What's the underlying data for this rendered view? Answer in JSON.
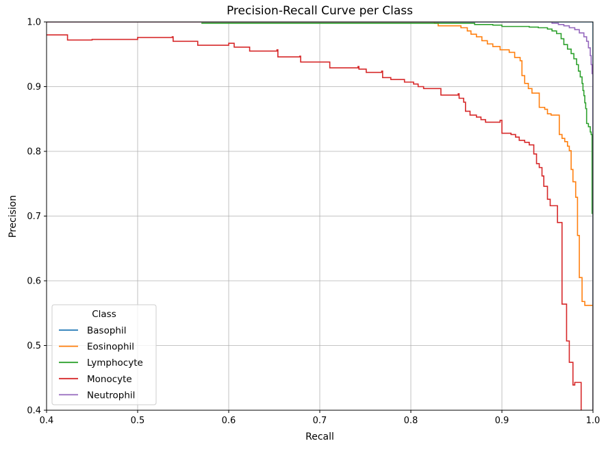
{
  "chart_data": {
    "type": "line",
    "title": "Precision-Recall Curve per Class",
    "xlabel": "Recall",
    "ylabel": "Precision",
    "xlim": [
      0.4,
      1.0
    ],
    "ylim": [
      0.4,
      1.0
    ],
    "xticks": [
      "0.4",
      "0.5",
      "0.6",
      "0.7",
      "0.8",
      "0.9",
      "1.0"
    ],
    "yticks": [
      "0.4",
      "0.5",
      "0.6",
      "0.7",
      "0.8",
      "0.9",
      "1.0"
    ],
    "grid": true,
    "legend": {
      "title": "Class",
      "placement": "lower-left"
    },
    "step": true,
    "series": [
      {
        "name": "Basophil",
        "color": "#1f77b4",
        "points": [
          [
            0.0,
            1.0
          ],
          [
            0.998,
            1.0
          ],
          [
            1.0,
            1.0
          ],
          [
            1.0,
            0.4
          ]
        ]
      },
      {
        "name": "Eosinophil",
        "color": "#ff7f0e",
        "points": [
          [
            0.0,
            1.0
          ],
          [
            0.815,
            1.0
          ],
          [
            0.826,
            0.998
          ],
          [
            0.83,
            0.994
          ],
          [
            0.85,
            0.994
          ],
          [
            0.855,
            0.991
          ],
          [
            0.862,
            0.986
          ],
          [
            0.866,
            0.981
          ],
          [
            0.872,
            0.977
          ],
          [
            0.878,
            0.971
          ],
          [
            0.884,
            0.966
          ],
          [
            0.89,
            0.962
          ],
          [
            0.898,
            0.957
          ],
          [
            0.905,
            0.957
          ],
          [
            0.908,
            0.953
          ],
          [
            0.914,
            0.945
          ],
          [
            0.92,
            0.94
          ],
          [
            0.922,
            0.917
          ],
          [
            0.925,
            0.905
          ],
          [
            0.929,
            0.897
          ],
          [
            0.933,
            0.89
          ],
          [
            0.94,
            0.89
          ],
          [
            0.941,
            0.868
          ],
          [
            0.947,
            0.865
          ],
          [
            0.95,
            0.858
          ],
          [
            0.954,
            0.856
          ],
          [
            0.962,
            0.856
          ],
          [
            0.963,
            0.826
          ],
          [
            0.966,
            0.82
          ],
          [
            0.969,
            0.815
          ],
          [
            0.972,
            0.808
          ],
          [
            0.974,
            0.801
          ],
          [
            0.976,
            0.772
          ],
          [
            0.978,
            0.753
          ],
          [
            0.981,
            0.729
          ],
          [
            0.983,
            0.67
          ],
          [
            0.985,
            0.605
          ],
          [
            0.988,
            0.568
          ],
          [
            0.991,
            0.562
          ],
          [
            1.0,
            0.562
          ],
          [
            1.0,
            0.4
          ]
        ]
      },
      {
        "name": "Lymphocyte",
        "color": "#2ca02c",
        "points": [
          [
            0.57,
            0.998
          ],
          [
            0.84,
            0.998
          ],
          [
            0.87,
            0.996
          ],
          [
            0.89,
            0.995
          ],
          [
            0.9,
            0.993
          ],
          [
            0.925,
            0.993
          ],
          [
            0.93,
            0.992
          ],
          [
            0.94,
            0.991
          ],
          [
            0.95,
            0.989
          ],
          [
            0.955,
            0.986
          ],
          [
            0.96,
            0.982
          ],
          [
            0.965,
            0.974
          ],
          [
            0.968,
            0.965
          ],
          [
            0.972,
            0.958
          ],
          [
            0.976,
            0.951
          ],
          [
            0.979,
            0.943
          ],
          [
            0.982,
            0.934
          ],
          [
            0.984,
            0.924
          ],
          [
            0.986,
            0.915
          ],
          [
            0.988,
            0.905
          ],
          [
            0.989,
            0.894
          ],
          [
            0.99,
            0.886
          ],
          [
            0.991,
            0.875
          ],
          [
            0.992,
            0.866
          ],
          [
            0.993,
            0.843
          ],
          [
            0.995,
            0.838
          ],
          [
            0.997,
            0.83
          ],
          [
            0.998,
            0.826
          ],
          [
            0.999,
            0.704
          ],
          [
            1.0,
            0.7
          ],
          [
            1.0,
            0.4
          ]
        ]
      },
      {
        "name": "Monocyte",
        "color": "#d62728",
        "points": [
          [
            0.4,
            0.98
          ],
          [
            0.422,
            0.98
          ],
          [
            0.423,
            0.972
          ],
          [
            0.45,
            0.973
          ],
          [
            0.5,
            0.976
          ],
          [
            0.538,
            0.977
          ],
          [
            0.539,
            0.97
          ],
          [
            0.565,
            0.97
          ],
          [
            0.566,
            0.964
          ],
          [
            0.6,
            0.967
          ],
          [
            0.605,
            0.967
          ],
          [
            0.606,
            0.961
          ],
          [
            0.622,
            0.961
          ],
          [
            0.623,
            0.955
          ],
          [
            0.653,
            0.957
          ],
          [
            0.654,
            0.946
          ],
          [
            0.678,
            0.947
          ],
          [
            0.679,
            0.938
          ],
          [
            0.71,
            0.938
          ],
          [
            0.711,
            0.929
          ],
          [
            0.742,
            0.931
          ],
          [
            0.743,
            0.927
          ],
          [
            0.75,
            0.927
          ],
          [
            0.751,
            0.922
          ],
          [
            0.768,
            0.924
          ],
          [
            0.769,
            0.914
          ],
          [
            0.777,
            0.914
          ],
          [
            0.778,
            0.911
          ],
          [
            0.792,
            0.911
          ],
          [
            0.793,
            0.907
          ],
          [
            0.802,
            0.907
          ],
          [
            0.803,
            0.904
          ],
          [
            0.808,
            0.9
          ],
          [
            0.814,
            0.897
          ],
          [
            0.832,
            0.897
          ],
          [
            0.833,
            0.887
          ],
          [
            0.852,
            0.889
          ],
          [
            0.853,
            0.882
          ],
          [
            0.858,
            0.876
          ],
          [
            0.86,
            0.862
          ],
          [
            0.865,
            0.856
          ],
          [
            0.872,
            0.853
          ],
          [
            0.877,
            0.849
          ],
          [
            0.882,
            0.845
          ],
          [
            0.898,
            0.848
          ],
          [
            0.9,
            0.828
          ],
          [
            0.91,
            0.826
          ],
          [
            0.915,
            0.822
          ],
          [
            0.919,
            0.817
          ],
          [
            0.925,
            0.814
          ],
          [
            0.93,
            0.81
          ],
          [
            0.935,
            0.796
          ],
          [
            0.938,
            0.781
          ],
          [
            0.941,
            0.775
          ],
          [
            0.944,
            0.762
          ],
          [
            0.946,
            0.746
          ],
          [
            0.95,
            0.726
          ],
          [
            0.953,
            0.716
          ],
          [
            0.96,
            0.716
          ],
          [
            0.961,
            0.69
          ],
          [
            0.965,
            0.69
          ],
          [
            0.966,
            0.564
          ],
          [
            0.97,
            0.564
          ],
          [
            0.971,
            0.507
          ],
          [
            0.974,
            0.474
          ],
          [
            0.977,
            0.474
          ],
          [
            0.978,
            0.439
          ],
          [
            0.98,
            0.443
          ],
          [
            0.986,
            0.443
          ],
          [
            0.987,
            0.4
          ]
        ]
      },
      {
        "name": "Neutrophil",
        "color": "#9467bd",
        "points": [
          [
            0.0,
            1.0
          ],
          [
            0.948,
            1.0
          ],
          [
            0.955,
            0.998
          ],
          [
            0.962,
            0.996
          ],
          [
            0.968,
            0.994
          ],
          [
            0.974,
            0.991
          ],
          [
            0.98,
            0.988
          ],
          [
            0.985,
            0.983
          ],
          [
            0.99,
            0.977
          ],
          [
            0.993,
            0.97
          ],
          [
            0.995,
            0.96
          ],
          [
            0.997,
            0.948
          ],
          [
            0.998,
            0.934
          ],
          [
            0.999,
            0.92
          ],
          [
            1.0,
            0.9
          ],
          [
            1.0,
            0.4
          ]
        ]
      }
    ]
  }
}
